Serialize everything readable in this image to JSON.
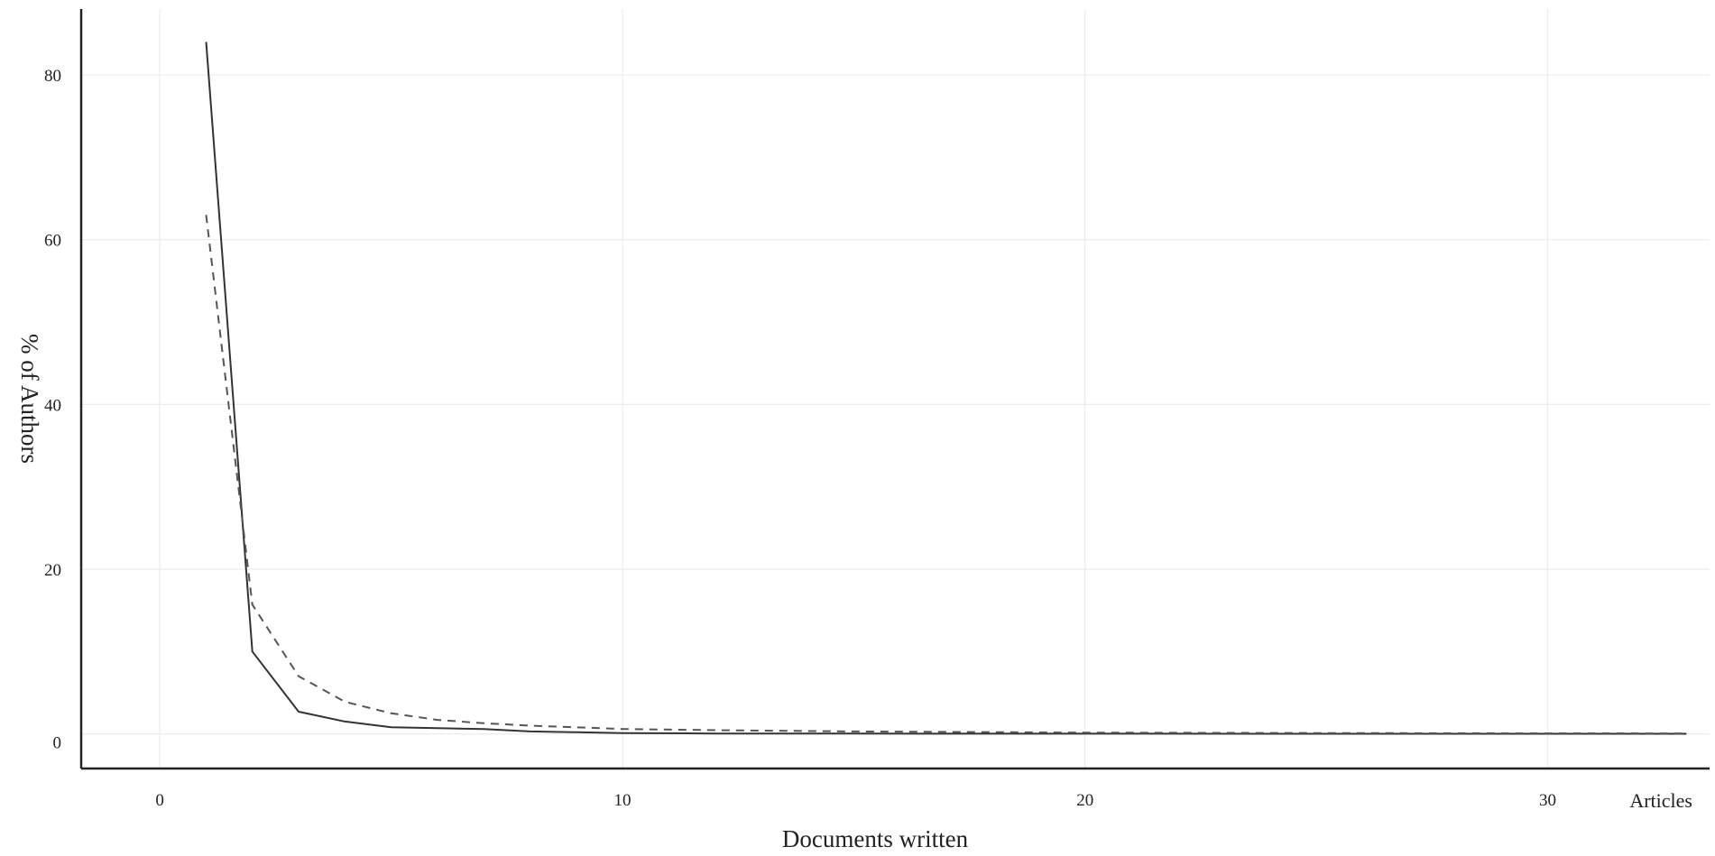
{
  "chart_data": {
    "type": "line",
    "xlabel": "Documents written",
    "ylabel": "% of Authors",
    "annotation": "Articles",
    "xlim": [
      -1.7,
      33.5
    ],
    "ylim": [
      -4.2,
      88
    ],
    "x_ticks": [
      0,
      10,
      20,
      30
    ],
    "y_ticks": [
      0,
      20,
      40,
      60,
      80
    ],
    "grid": true,
    "series": [
      {
        "style": "solid",
        "color": "#333333",
        "points": [
          [
            1,
            84
          ],
          [
            2,
            10
          ],
          [
            3,
            2.7
          ],
          [
            4,
            1.5
          ],
          [
            5,
            0.8
          ],
          [
            6,
            0.7
          ],
          [
            7,
            0.6
          ],
          [
            8,
            0.3
          ],
          [
            9,
            0.2
          ],
          [
            10,
            0.1
          ],
          [
            12,
            0.05
          ],
          [
            15,
            0.04
          ],
          [
            20,
            0.03
          ],
          [
            25,
            0.02
          ],
          [
            30,
            0.02
          ],
          [
            33,
            0.02
          ]
        ]
      },
      {
        "style": "dashed",
        "color": "#555555",
        "points": [
          [
            1,
            63
          ],
          [
            2,
            15.7
          ],
          [
            3,
            7
          ],
          [
            4,
            3.9
          ],
          [
            5,
            2.5
          ],
          [
            6,
            1.7
          ],
          [
            7,
            1.3
          ],
          [
            8,
            1
          ],
          [
            9,
            0.8
          ],
          [
            10,
            0.6
          ],
          [
            12,
            0.45
          ],
          [
            15,
            0.3
          ],
          [
            20,
            0.16
          ],
          [
            25,
            0.1
          ],
          [
            30,
            0.07
          ],
          [
            33,
            0.06
          ]
        ]
      }
    ]
  }
}
